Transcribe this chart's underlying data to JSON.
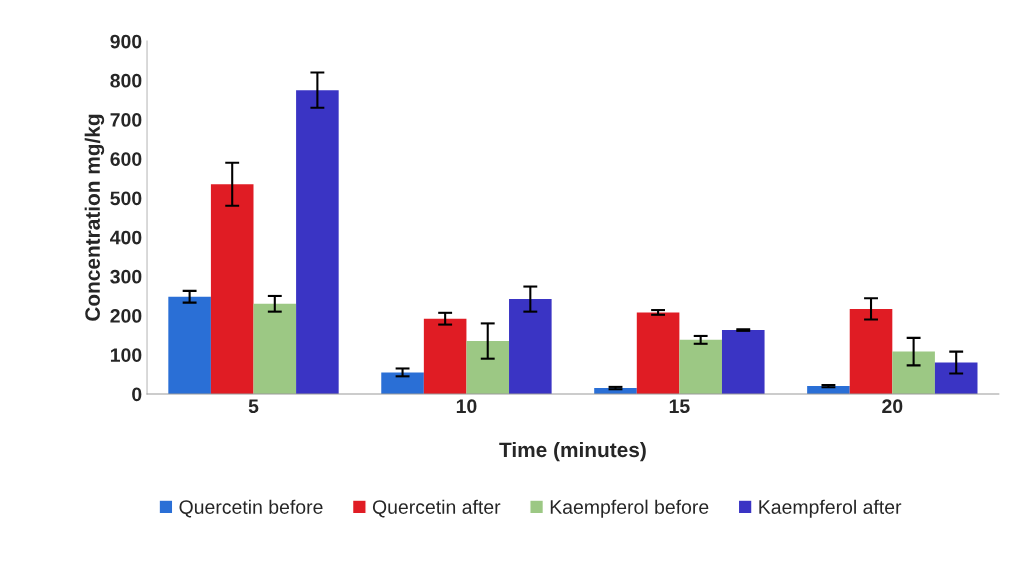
{
  "chart_data": {
    "type": "bar",
    "xlabel": "Time (minutes)",
    "ylabel": "Concentration mg/kg",
    "categories": [
      "5",
      "10",
      "15",
      "20"
    ],
    "series": [
      {
        "name": "Quercetin before",
        "color": "#2a6fd6",
        "values": [
          248,
          55,
          15,
          20
        ],
        "errors": [
          15,
          10,
          3,
          3
        ]
      },
      {
        "name": "Quercetin after",
        "color": "#e01c24",
        "values": [
          535,
          192,
          208,
          217
        ],
        "errors": [
          55,
          15,
          6,
          27
        ]
      },
      {
        "name": "Kaempferol before",
        "color": "#9cc884",
        "values": [
          230,
          135,
          138,
          108
        ],
        "errors": [
          20,
          45,
          10,
          35
        ]
      },
      {
        "name": "Kaempferol after",
        "color": "#3a34c4",
        "values": [
          775,
          242,
          163,
          80
        ],
        "errors": [
          45,
          32,
          2,
          28
        ]
      }
    ],
    "ylim": [
      0,
      900
    ],
    "yticks": [
      0,
      100,
      200,
      300,
      400,
      500,
      600,
      700,
      800,
      900
    ],
    "grid": false,
    "legend": "bottom"
  }
}
